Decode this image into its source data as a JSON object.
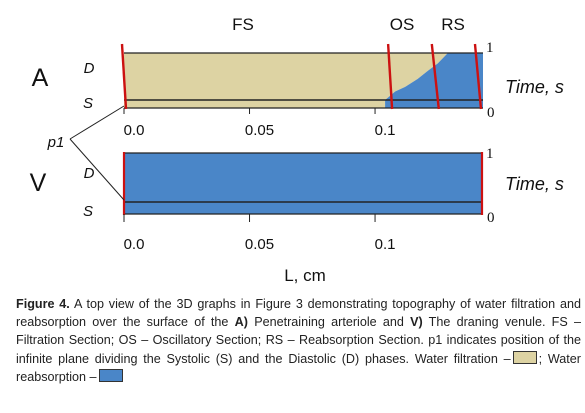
{
  "chart_data": [
    {
      "type": "area",
      "panel_label": "A",
      "regions": [
        "FS",
        "OS",
        "RS"
      ],
      "x_ticks": [
        "0.0",
        "0.05",
        "0.1"
      ],
      "x_tick_values": [
        0.0,
        0.05,
        0.1
      ],
      "xlim": [
        0.0,
        0.143
      ],
      "y_axis_label": "Time, s",
      "y_ticks": [
        "1",
        "0"
      ],
      "y_tick_values": [
        1,
        0
      ],
      "phase_labels": [
        "D",
        "S"
      ],
      "region_boundaries_x": [
        0.0,
        0.106,
        0.124,
        0.141
      ],
      "reabsorption_front": [
        [
          0.104,
          0.0
        ],
        [
          0.108,
          0.18
        ],
        [
          0.112,
          0.28
        ],
        [
          0.117,
          0.45
        ],
        [
          0.121,
          0.62
        ],
        [
          0.125,
          0.78
        ],
        [
          0.129,
          1.0
        ]
      ]
    },
    {
      "type": "area",
      "panel_label": "V",
      "x_ticks": [
        "0.0",
        "0.05",
        "0.1"
      ],
      "x_tick_values": [
        0.0,
        0.05,
        0.1
      ],
      "xlim": [
        0.0,
        0.143
      ],
      "y_axis_label": "Time, s",
      "y_ticks": [
        "1",
        "0"
      ],
      "y_tick_values": [
        1,
        0
      ],
      "phase_labels": [
        "D",
        "S"
      ],
      "x_axis_label": "L, cm"
    }
  ],
  "plane_label": "p1",
  "colors": {
    "filtration": "#ddd3a3",
    "reabsorption": "#4a86c8",
    "boundary": "#cc1111",
    "edge": "#222222"
  },
  "caption": {
    "label": "Figure 4.",
    "text_1": " A top view of the 3D graphs in Figure 3 demonstrating topography of water filtration and reabsorption over the surface of the ",
    "a": "A)",
    "text_2": " Penetraining arteriole and ",
    "v": "V)",
    "text_3": " The draning venule. FS – Filtration Section; OS – Oscillatory Section; RS – Reabsorption Section. p1 indicates position of the infinite plane dividing the Systolic (S) and the Diastolic (D) phases. Water filtration –",
    "text_4": ";   Water reabsorption –"
  }
}
